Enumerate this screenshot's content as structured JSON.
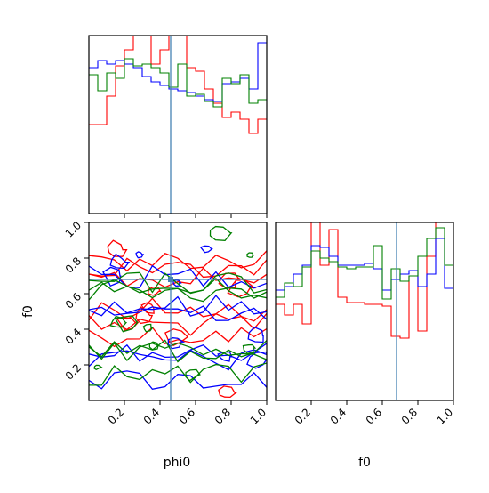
{
  "chart_data": {
    "type": "corner",
    "parameters": [
      "phi0",
      "f0"
    ],
    "truths": {
      "phi0": 0.46,
      "f0": 0.68
    },
    "truth_color": "#4682b4",
    "axis_range": [
      0,
      1
    ],
    "tick_labels": [
      "0.2",
      "0.4",
      "0.6",
      "0.8",
      "1.0"
    ],
    "tick_values": [
      0.2,
      0.4,
      0.6,
      0.8,
      1.0
    ],
    "xlabels": {
      "left": "phi0",
      "right": "f0"
    },
    "ylabel": "f0",
    "bins": [
      0.0,
      0.05,
      0.1,
      0.15,
      0.2,
      0.25,
      0.3,
      0.35,
      0.4,
      0.45,
      0.5,
      0.55,
      0.6,
      0.65,
      0.7,
      0.75,
      0.8,
      0.85,
      0.9,
      0.95,
      1.0
    ],
    "hist_phi0": {
      "ylim": [
        0,
        1
      ],
      "series": [
        {
          "color": "#ff0000",
          "values": [
            0.5,
            0.5,
            0.66,
            0.83,
            0.92,
            1.1,
            1.1,
            0.84,
            0.92,
            1.05,
            1.1,
            0.82,
            0.8,
            0.7,
            0.62,
            0.54,
            0.57,
            0.53,
            0.45,
            0.53
          ]
        },
        {
          "color": "#0000ff",
          "values": [
            0.82,
            0.86,
            0.84,
            0.86,
            0.84,
            0.82,
            0.77,
            0.74,
            0.72,
            0.7,
            0.69,
            0.68,
            0.66,
            0.64,
            0.63,
            0.73,
            0.74,
            0.76,
            0.7,
            0.96
          ]
        },
        {
          "color": "#008000",
          "values": [
            0.78,
            0.69,
            0.79,
            0.76,
            0.87,
            0.83,
            0.84,
            0.82,
            0.79,
            0.71,
            0.84,
            0.66,
            0.67,
            0.63,
            0.6,
            0.76,
            0.73,
            0.78,
            0.62,
            0.64
          ]
        }
      ]
    },
    "hist_f0": {
      "ylim": [
        0,
        1
      ],
      "series": [
        {
          "color": "#ff0000",
          "values": [
            0.54,
            0.48,
            0.54,
            0.43,
            1.15,
            0.76,
            0.96,
            0.58,
            0.55,
            0.55,
            0.54,
            0.54,
            0.53,
            0.36,
            0.35,
            0.7,
            0.39,
            0.81,
            1.0,
            1.0
          ]
        },
        {
          "color": "#0000ff",
          "values": [
            0.62,
            0.64,
            0.71,
            0.76,
            0.87,
            0.86,
            0.81,
            0.76,
            0.76,
            0.76,
            0.77,
            0.74,
            0.62,
            0.68,
            0.71,
            0.73,
            0.64,
            0.71,
            0.91,
            0.63
          ]
        },
        {
          "color": "#008000",
          "values": [
            0.58,
            0.66,
            0.64,
            0.75,
            0.84,
            0.8,
            0.78,
            0.75,
            0.74,
            0.75,
            0.75,
            0.87,
            0.57,
            0.74,
            0.67,
            0.7,
            0.81,
            0.91,
            0.97,
            0.76
          ]
        }
      ]
    },
    "contour_panel": {
      "xparam": "phi0",
      "yparam": "f0",
      "xlim": [
        0,
        1
      ],
      "ylim": [
        0,
        1
      ],
      "series_colors": [
        "#ff0000",
        "#0000ff",
        "#008000"
      ],
      "note_levels": 2
    }
  }
}
